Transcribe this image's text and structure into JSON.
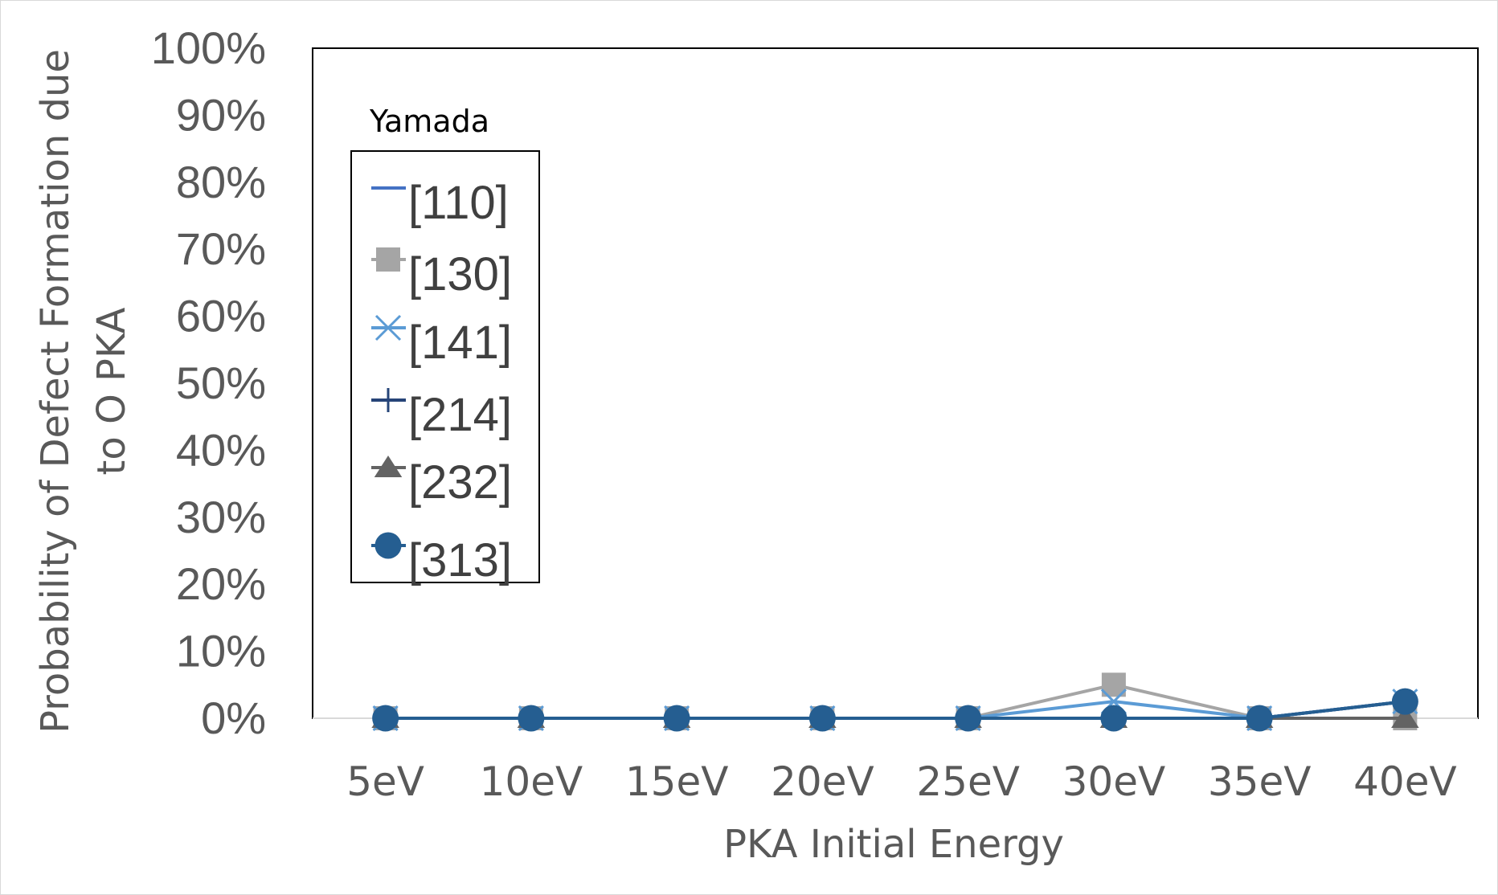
{
  "chart_data": {
    "type": "line",
    "categories": [
      "5eV",
      "10eV",
      "15eV",
      "20eV",
      "25eV",
      "30eV",
      "35eV",
      "40eV"
    ],
    "xlabel": "PKA Initial Energy",
    "ylabel": [
      "Probability of Defect Formation due",
      "to O PKA"
    ],
    "ylim": [
      0,
      100
    ],
    "yticks": [
      "0%",
      "10%",
      "20%",
      "30%",
      "40%",
      "50%",
      "60%",
      "70%",
      "80%",
      "90%",
      "100%"
    ],
    "legend": {
      "title": "Yamada",
      "placement": "top-left inside plot"
    },
    "grid": false,
    "series": [
      {
        "name": "[110]",
        "color": "#4472C4",
        "marker": "none",
        "values": [
          0,
          0,
          0,
          0,
          0,
          0,
          0,
          2.5
        ]
      },
      {
        "name": "[130]",
        "color": "#A5A5A5",
        "marker": "square",
        "values": [
          0,
          0,
          0,
          0,
          0,
          5,
          0,
          0
        ]
      },
      {
        "name": "[141]",
        "color": "#5B9BD5",
        "marker": "x",
        "values": [
          0,
          0,
          0,
          0,
          0,
          2.5,
          0,
          2.5
        ]
      },
      {
        "name": "[214]",
        "color": "#264478",
        "marker": "plus",
        "values": [
          0,
          0,
          0,
          0,
          0,
          0,
          0,
          2.5
        ]
      },
      {
        "name": "[232]",
        "color": "#636363",
        "marker": "triangle",
        "values": [
          0,
          0,
          0,
          0,
          0,
          0,
          0,
          0
        ]
      },
      {
        "name": "[313]",
        "color": "#255E91",
        "marker": "circle",
        "values": [
          0,
          0,
          0,
          0,
          0,
          0,
          0,
          2.5
        ]
      }
    ]
  }
}
